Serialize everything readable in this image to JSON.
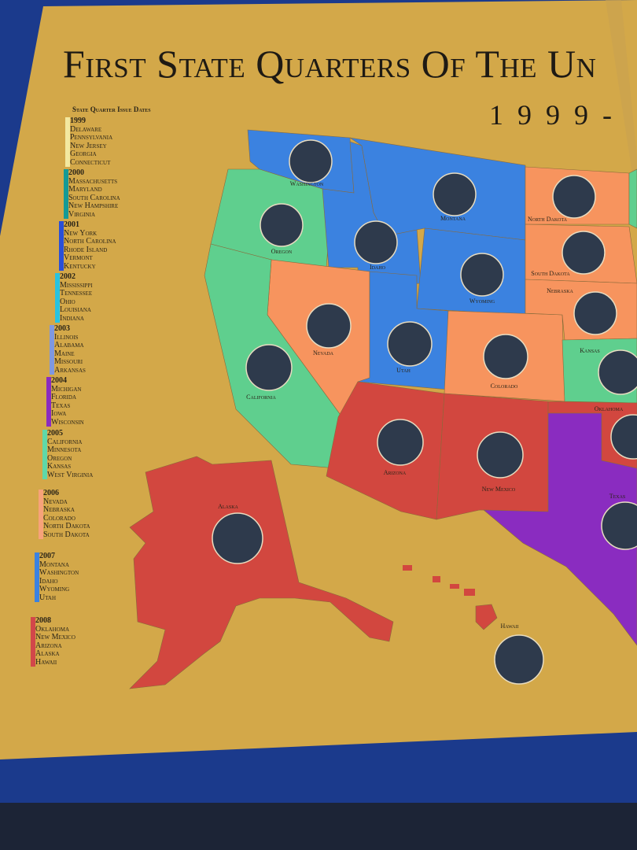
{
  "title": "First State Quarters Of The Un",
  "years": "1999-",
  "legend": {
    "title": "State Quarter Issue Dates",
    "groups": [
      {
        "year": "1999",
        "color": "#f3e9a0",
        "states": [
          "Delaware",
          "Pennsylvania",
          "New Jersey",
          "Georgia",
          "Connecticut"
        ]
      },
      {
        "year": "2000",
        "color": "#149a96",
        "states": [
          "Massachusetts",
          "Maryland",
          "South Carolina",
          "New Hampshire",
          "Virginia"
        ]
      },
      {
        "year": "2001",
        "color": "#2a4fd8",
        "states": [
          "New York",
          "North Carolina",
          "Rhode Island",
          "Vermont",
          "Kentucky"
        ]
      },
      {
        "year": "2002",
        "color": "#27c3e0",
        "states": [
          "Mississippi",
          "Tennessee",
          "Ohio",
          "Louisiana",
          "Indiana"
        ]
      },
      {
        "year": "2003",
        "color": "#7f98e0",
        "states": [
          "Illinois",
          "Alabama",
          "Maine",
          "Missouri",
          "Arkansas"
        ]
      },
      {
        "year": "2004",
        "color": "#8a2cc0",
        "states": [
          "Michigan",
          "Florida",
          "Texas",
          "Iowa",
          "Wisconsin"
        ]
      },
      {
        "year": "2005",
        "color": "#5fd8a8",
        "states": [
          "California",
          "Minnesota",
          "Oregon",
          "Kansas",
          "West Virginia"
        ]
      },
      {
        "year": "2006",
        "color": "#f7a27a",
        "states": [
          "Nevada",
          "Nebraska",
          "Colorado",
          "North Dakota",
          "South Dakota"
        ]
      },
      {
        "year": "2007",
        "color": "#3b82e0",
        "states": [
          "Montana",
          "Washington",
          "Idaho",
          "Wyoming",
          "Utah"
        ]
      },
      {
        "year": "2008",
        "color": "#d2474a",
        "states": [
          "Oklahoma",
          "New Mexico",
          "Arizona",
          "Alaska",
          "Hawaii"
        ]
      }
    ]
  },
  "map_labels": {
    "washington": "Washington",
    "oregon": "Oregon",
    "idaho": "Idaho",
    "montana": "Montana",
    "north_dakota": "North Dakota",
    "south_dakota": "South Dakota",
    "wyoming": "Wyoming",
    "nebraska": "Nebraska",
    "nevada": "Nevada",
    "utah": "Utah",
    "colorado": "Colorado",
    "kansas": "Kansas",
    "california": "California",
    "oklahoma": "Oklahoma",
    "arizona": "Arizona",
    "new_mexico": "New Mexico",
    "texas": "Texas",
    "alaska": "Alaska",
    "hawaii": "Hawaii"
  },
  "colors": {
    "paper": "#d3a849",
    "board": "#1b3a8c",
    "blue": "#3b82e0",
    "green": "#5fcf8e",
    "orange": "#f7945e",
    "red": "#d2473f",
    "purple": "#8a2cc0",
    "coin_hole": "#2e3a4c"
  }
}
